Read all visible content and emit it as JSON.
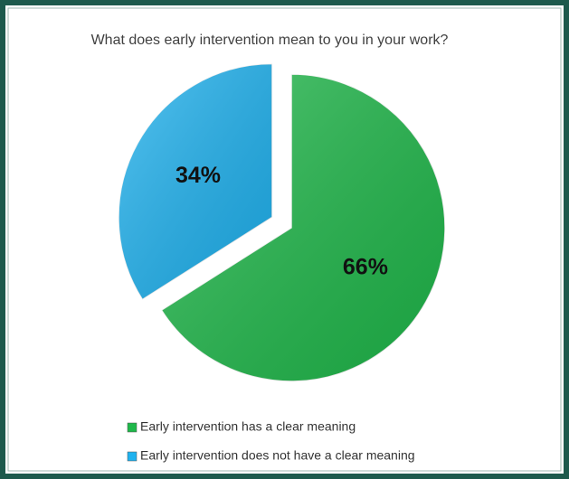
{
  "chart_data": {
    "type": "pie",
    "title": "What does early intervention mean to you in your  work?",
    "categories": [
      "Early intervention has a clear meaning",
      "Early intervention does not have a clear meaning"
    ],
    "values": [
      66,
      34
    ],
    "value_labels": [
      "66%",
      "34%"
    ],
    "colors": [
      "#1fb84a",
      "#1fb2ef"
    ],
    "exploded": [
      false,
      true
    ],
    "legend": "bottom"
  }
}
